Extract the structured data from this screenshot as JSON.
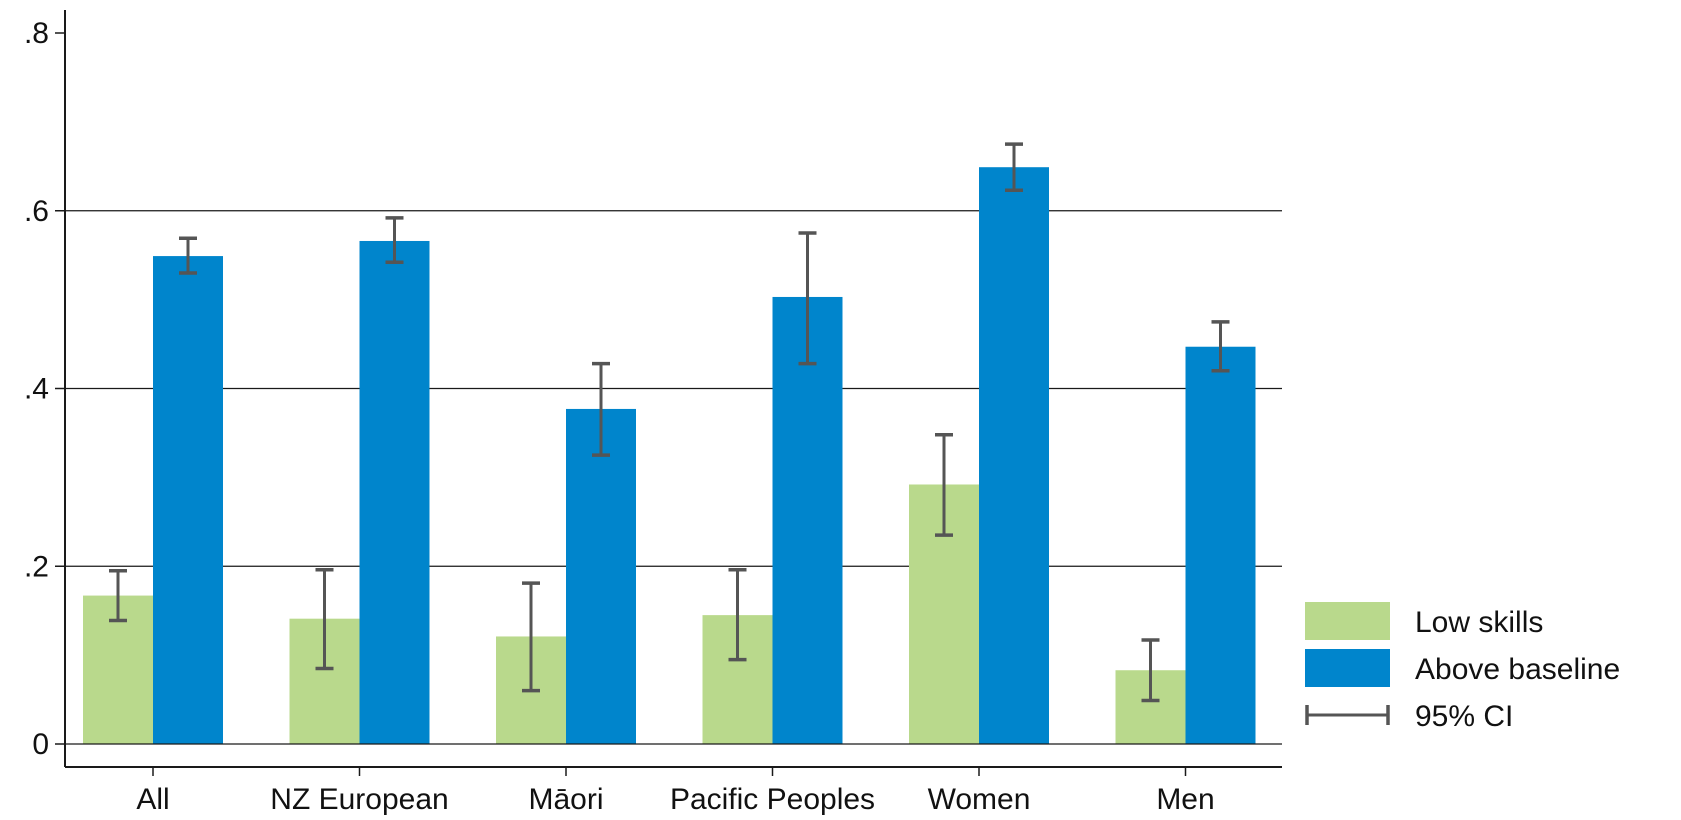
{
  "chart_data": {
    "type": "bar",
    "categories": [
      "All",
      "NZ European",
      "Māori",
      "Pacific Peoples",
      "Women",
      "Men"
    ],
    "series": [
      {
        "name": "Low skills",
        "color": "#b9d98c",
        "values": [
          0.167,
          0.141,
          0.121,
          0.145,
          0.292,
          0.083
        ],
        "ci_low": [
          0.139,
          0.085,
          0.06,
          0.095,
          0.235,
          0.049
        ],
        "ci_high": [
          0.195,
          0.196,
          0.181,
          0.196,
          0.348,
          0.117
        ]
      },
      {
        "name": "Above baseline",
        "color": "#0085cc",
        "values": [
          0.549,
          0.566,
          0.377,
          0.503,
          0.649,
          0.447
        ],
        "ci_low": [
          0.53,
          0.542,
          0.325,
          0.428,
          0.623,
          0.42
        ],
        "ci_high": [
          0.569,
          0.592,
          0.428,
          0.575,
          0.675,
          0.475
        ]
      }
    ],
    "ci_label": "95% CI",
    "ci_color": "#555555",
    "ylim": [
      0,
      0.8
    ],
    "yticks": [
      {
        "value": 0,
        "label": "0"
      },
      {
        "value": 0.2,
        "label": ".2"
      },
      {
        "value": 0.4,
        "label": ".4"
      },
      {
        "value": 0.6,
        "label": ".6"
      },
      {
        "value": 0.8,
        "label": ".8"
      }
    ],
    "grid": true,
    "legend_position": "bottom-right",
    "title": "",
    "xlabel": "",
    "ylabel": ""
  }
}
